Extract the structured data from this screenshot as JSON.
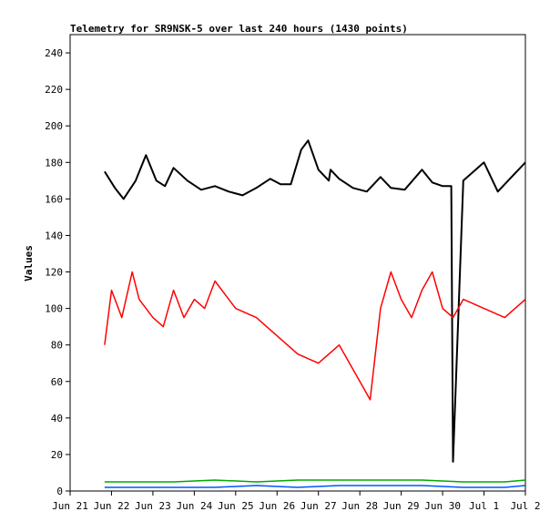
{
  "chart_data": {
    "type": "line",
    "title": "Telemetry for SR9NSK-5 over last 240 hours (1430 points)",
    "xlabel": "",
    "ylabel": "Values",
    "ylim": [
      0,
      250
    ],
    "y_ticks": [
      0,
      20,
      40,
      60,
      80,
      100,
      120,
      140,
      160,
      180,
      200,
      220,
      240
    ],
    "x_ticks": [
      "Jun 21",
      "Jun 22",
      "Jun 23",
      "Jun 24",
      "Jun 25",
      "Jun 26",
      "Jun 27",
      "Jun 28",
      "Jun 29",
      "Jun 30",
      "Jul 1",
      "Jul 2"
    ],
    "x_range": [
      "Jun 21",
      "Jul 2"
    ],
    "grid": false,
    "legend": "none",
    "series": [
      {
        "color": "#000000",
        "x": [
          "Jun 21 20:00",
          "Jun 22 02:00",
          "Jun 22 07:00",
          "Jun 22 14:00",
          "Jun 22 20:00",
          "Jun 23 02:00",
          "Jun 23 07:00",
          "Jun 23 12:00",
          "Jun 23 20:00",
          "Jun 24 04:00",
          "Jun 24 12:00",
          "Jun 24 20:00",
          "Jun 25 04:00",
          "Jun 25 12:00",
          "Jun 25 20:00",
          "Jun 26 02:00",
          "Jun 26 08:00",
          "Jun 26 14:00",
          "Jun 26 18:00",
          "Jun 27 00:00",
          "Jun 27 06:00",
          "Jun 27 07:00",
          "Jun 27 12:00",
          "Jun 27 20:00",
          "Jun 28 04:00",
          "Jun 28 12:00",
          "Jun 28 18:00",
          "Jun 29 02:00",
          "Jun 29 12:00",
          "Jun 29 18:00",
          "Jun 30 00:00",
          "Jun 30 05:00",
          "Jun 30 06:00",
          "Jun 30 12:00",
          "Jul 1 00:00",
          "Jul 1 08:00",
          "Jul 1 16:00",
          "Jul 2 00:00"
        ],
        "y": [
          175,
          166,
          160,
          170,
          184,
          170,
          167,
          177,
          170,
          165,
          167,
          164,
          162,
          166,
          171,
          168,
          168,
          187,
          192,
          176,
          170,
          176,
          171,
          166,
          164,
          172,
          166,
          165,
          176,
          169,
          167,
          167,
          16,
          170,
          180,
          164,
          172,
          180
        ]
      },
      {
        "color": "#ff0000",
        "x": [
          "Jun 21 20:00",
          "Jun 22 00:00",
          "Jun 22 06:00",
          "Jun 22 12:00",
          "Jun 22 16:00",
          "Jun 23 00:00",
          "Jun 23 06:00",
          "Jun 23 12:00",
          "Jun 23 18:00",
          "Jun 24 00:00",
          "Jun 24 06:00",
          "Jun 24 12:00",
          "Jun 25 00:00",
          "Jun 25 12:00",
          "Jun 26 00:00",
          "Jun 26 12:00",
          "Jun 27 00:00",
          "Jun 27 12:00",
          "Jun 28 00:00",
          "Jun 28 06:00",
          "Jun 28 12:00",
          "Jun 28 18:00",
          "Jun 29 00:00",
          "Jun 29 06:00",
          "Jun 29 12:00",
          "Jun 29 18:00",
          "Jun 30 00:00",
          "Jun 30 06:00",
          "Jun 30 12:00",
          "Jul 1 00:00",
          "Jul 1 12:00",
          "Jul 2 00:00"
        ],
        "y": [
          80,
          110,
          95,
          120,
          105,
          95,
          90,
          110,
          95,
          105,
          100,
          115,
          100,
          95,
          85,
          75,
          70,
          80,
          60,
          50,
          100,
          120,
          105,
          95,
          110,
          120,
          100,
          95,
          105,
          100,
          95,
          105
        ]
      },
      {
        "color": "#00aa00",
        "x": [
          "Jun 21 20:00",
          "Jun 22 12:00",
          "Jun 23 12:00",
          "Jun 24 12:00",
          "Jun 25 12:00",
          "Jun 26 12:00",
          "Jun 27 12:00",
          "Jun 28 12:00",
          "Jun 29 12:00",
          "Jun 30 12:00",
          "Jul 1 12:00",
          "Jul 2 00:00"
        ],
        "y": [
          5,
          5,
          5,
          6,
          5,
          6,
          6,
          6,
          6,
          5,
          5,
          6
        ]
      },
      {
        "color": "#0055ff",
        "x": [
          "Jun 21 20:00",
          "Jun 22 12:00",
          "Jun 23 12:00",
          "Jun 24 12:00",
          "Jun 25 12:00",
          "Jun 26 12:00",
          "Jun 27 12:00",
          "Jun 28 12:00",
          "Jun 29 12:00",
          "Jun 30 12:00",
          "Jul 1 12:00",
          "Jul 2 00:00"
        ],
        "y": [
          2,
          2,
          2,
          2,
          3,
          2,
          3,
          3,
          3,
          2,
          2,
          3
        ]
      }
    ]
  }
}
